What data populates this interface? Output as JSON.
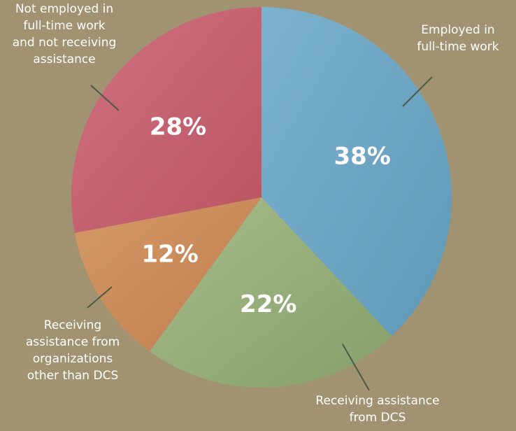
{
  "chart_data": {
    "type": "pie",
    "title": "",
    "slices": [
      {
        "label": "Employed in full-time work",
        "label_lines": [
          "Employed in",
          "full-time work"
        ],
        "value": 38,
        "value_label": "38%",
        "color": "#5f98b7",
        "color_light": "#7cb2d0"
      },
      {
        "label": "Receiving assistance from DCS",
        "label_lines": [
          "Receiving assistance",
          "from DCS"
        ],
        "value": 22,
        "value_label": "22%",
        "color": "#86a06a",
        "color_light": "#a7bc8a"
      },
      {
        "label": "Receiving assistance from organizations other than DCS",
        "label_lines": [
          "Receiving",
          "assistance from",
          "organizations",
          "other than DCS"
        ],
        "value": 12,
        "value_label": "12%",
        "color": "#c07d4d",
        "color_light": "#d59a68"
      },
      {
        "label": "Not employed in full-time work and not receiving assistance",
        "label_lines": [
          "Not employed in",
          "full-time work",
          "and not receiving",
          "assistance"
        ],
        "value": 28,
        "value_label": "28%",
        "color": "#bb5463",
        "color_light": "#cf7180"
      }
    ],
    "legend": "none",
    "background_color": "#a19372",
    "leader_line_color": "#4a5a4a"
  }
}
